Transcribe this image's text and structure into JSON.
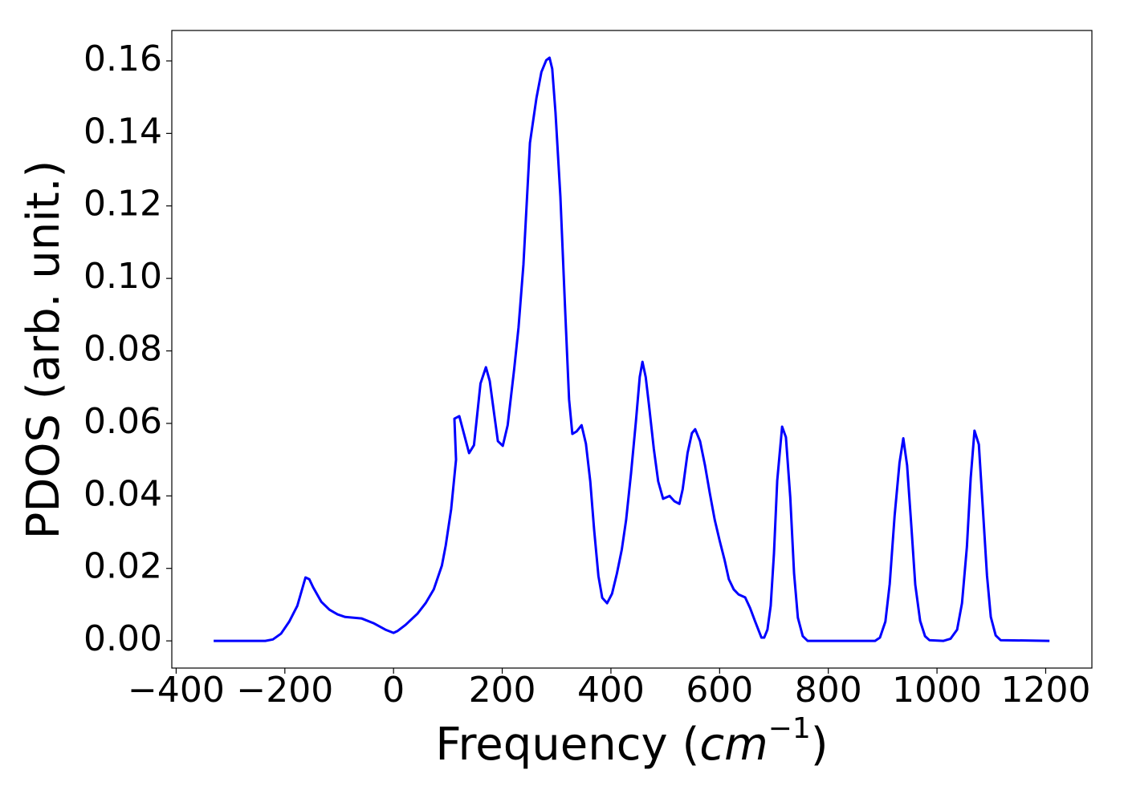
{
  "chart_data": {
    "type": "line",
    "xlabel": [
      "Frequency (",
      "cm",
      "−1",
      ")"
    ],
    "ylabel": "PDOS (arb. unit.)",
    "xlim": [
      -408,
      1285
    ],
    "ylim": [
      -0.0075,
      0.1684
    ],
    "xticks": [
      {
        "value": -400,
        "label": "−400"
      },
      {
        "value": -200,
        "label": "−200"
      },
      0,
      200,
      400,
      600,
      800,
      1000,
      1200
    ],
    "yticks": [
      {
        "value": 0,
        "label": "0.00"
      },
      {
        "value": 0.02,
        "label": "0.02"
      },
      {
        "value": 0.04,
        "label": "0.04"
      },
      {
        "value": 0.06,
        "label": "0.06"
      },
      {
        "value": 0.08,
        "label": "0.08"
      },
      {
        "value": 0.1,
        "label": "0.10"
      },
      {
        "value": 0.12,
        "label": "0.12"
      },
      {
        "value": 0.14,
        "label": "0.14"
      },
      {
        "value": 0.16,
        "label": "0.16"
      }
    ],
    "color": "#0000ff",
    "x": [
      -331,
      -236,
      -222,
      -207,
      -192,
      -177,
      -162,
      -155,
      -148,
      -133,
      -118,
      -103,
      -89,
      -59,
      -37,
      -15,
      0,
      7,
      22,
      44,
      59,
      74,
      89,
      96,
      106,
      115,
      112,
      121,
      139,
      148,
      160,
      170,
      177,
      185,
      192,
      201,
      210,
      222,
      230,
      239,
      251,
      263,
      272,
      281,
      287,
      292,
      298,
      307,
      316,
      323,
      329,
      337,
      346,
      354,
      362,
      369,
      377,
      384,
      393,
      402,
      411,
      420,
      428,
      437,
      446,
      453,
      458,
      464,
      470,
      479,
      487,
      496,
      508,
      517,
      526,
      532,
      541,
      549,
      555,
      564,
      573,
      582,
      591,
      600,
      609,
      617,
      626,
      635,
      647,
      656,
      665,
      677,
      682,
      688,
      694,
      700,
      706,
      715,
      722,
      730,
      737,
      744,
      753,
      762,
      886,
      895,
      905,
      913,
      922,
      931,
      938,
      945,
      953,
      960,
      969,
      978,
      986,
      1012,
      1025,
      1037,
      1046,
      1055,
      1062,
      1069,
      1077,
      1084,
      1092,
      1099,
      1108,
      1117,
      1207
    ],
    "values": [
      0,
      0,
      0.0004,
      0.002,
      0.0053,
      0.0097,
      0.0175,
      0.017,
      0.0148,
      0.0108,
      0.0086,
      0.0073,
      0.0066,
      0.0062,
      0.0049,
      0.0031,
      0.0022,
      0.0027,
      0.0044,
      0.0075,
      0.0104,
      0.0142,
      0.0208,
      0.0263,
      0.0363,
      0.05,
      0.0613,
      0.062,
      0.0518,
      0.054,
      0.071,
      0.0755,
      0.0717,
      0.0628,
      0.0551,
      0.0538,
      0.0595,
      0.075,
      0.0865,
      0.1038,
      0.1374,
      0.1498,
      0.1569,
      0.1602,
      0.1609,
      0.1578,
      0.1458,
      0.1226,
      0.0905,
      0.0666,
      0.0571,
      0.0578,
      0.0595,
      0.0544,
      0.044,
      0.0308,
      0.0179,
      0.0119,
      0.0104,
      0.013,
      0.0186,
      0.0252,
      0.0334,
      0.0462,
      0.0606,
      0.0728,
      0.077,
      0.0728,
      0.0651,
      0.0529,
      0.044,
      0.0392,
      0.04,
      0.0385,
      0.0378,
      0.0418,
      0.0518,
      0.0573,
      0.0584,
      0.0551,
      0.0485,
      0.0407,
      0.0334,
      0.0277,
      0.0224,
      0.017,
      0.0142,
      0.0128,
      0.012,
      0.0091,
      0.0055,
      0.0009,
      0.0009,
      0.0031,
      0.0097,
      0.0241,
      0.0442,
      0.0591,
      0.0562,
      0.0396,
      0.0186,
      0.0064,
      0.0013,
      0,
      0,
      0.0009,
      0.0053,
      0.0157,
      0.0345,
      0.0491,
      0.0559,
      0.0484,
      0.0312,
      0.0155,
      0.0055,
      0.0013,
      0.0002,
      0,
      0.0006,
      0.0031,
      0.0104,
      0.0259,
      0.0449,
      0.058,
      0.0542,
      0.0374,
      0.018,
      0.0066,
      0.0015,
      0.0002,
      0
    ]
  }
}
